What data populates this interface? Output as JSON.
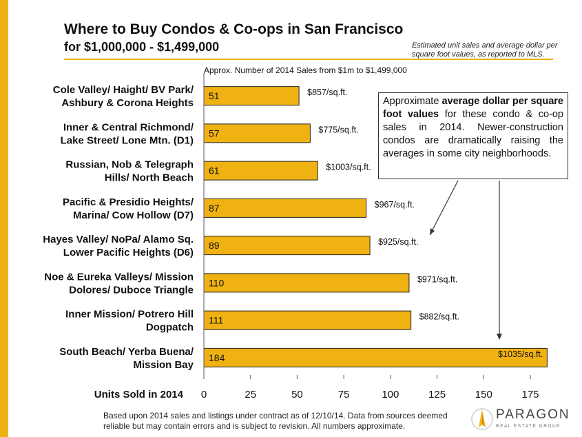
{
  "header": {
    "title": "Where to Buy Condos & Co-ops in San Francisco",
    "subtitle": "for $1,000,000 - $1,499,000",
    "note": "Estimated unit sales and average dollar per square foot values, as reported to MLS.",
    "chart_title": "Approx. Number of 2014 Sales from $1m to $1,499,000"
  },
  "callout": {
    "prefix": "Approximate ",
    "bold": "average dollar per square foot values",
    "suffix": " for these condo & co-op sales in 2014. Newer-construction condos are dramatically raising the averages in some city neighborhoods."
  },
  "footer": {
    "text": "Based upon 2014 sales and listings under contract as of 12/10/14. Data from sources deemed reliable but may contain errors and is subject to revision. All numbers approximate."
  },
  "logo": {
    "name": "PARAGON",
    "tagline": "REAL ESTATE GROUP"
  },
  "colors": {
    "bar": "#f0b212",
    "bar_stroke": "#222222",
    "accent": "#f0b212",
    "text": "#111111"
  },
  "chart_data": {
    "type": "bar",
    "orientation": "horizontal",
    "xlabel": "Units Sold in 2014",
    "xlim": [
      0,
      175
    ],
    "xticks": [
      0,
      25,
      50,
      75,
      100,
      125,
      150,
      175
    ],
    "grid": false,
    "categories": [
      [
        "Cole Valley/ Haight/ BV Park/",
        "Ashbury & Corona Heights"
      ],
      [
        "Inner & Central Richmond/",
        "Lake Street/ Lone Mtn. (D1)"
      ],
      [
        "Russian, Nob & Telegraph",
        "Hills/ North Beach"
      ],
      [
        "Pacific & Presidio Heights/",
        "Marina/ Cow Hollow (D7)"
      ],
      [
        "Hayes Valley/ NoPa/ Alamo Sq.",
        "Lower Pacific Heights (D6)"
      ],
      [
        "Noe & Eureka Valleys/ Mission",
        "Dolores/ Duboce Triangle"
      ],
      [
        "Inner Mission/ Potrero Hill",
        "Dogpatch"
      ],
      [
        "South Beach/ Yerba Buena/",
        "Mission Bay"
      ]
    ],
    "values": [
      51,
      57,
      61,
      87,
      89,
      110,
      111,
      184
    ],
    "value_labels": [
      "51",
      "57",
      "61",
      "87",
      "89",
      "110",
      "111",
      "184"
    ],
    "annotations": [
      "$857/sq.ft.",
      "$775/sq.ft.",
      "$1003/sq.ft.",
      "$967/sq.ft.",
      "$925/sq.ft.",
      "$971/sq.ft.",
      "$882/sq.ft.",
      "$1035/sq.ft."
    ]
  }
}
